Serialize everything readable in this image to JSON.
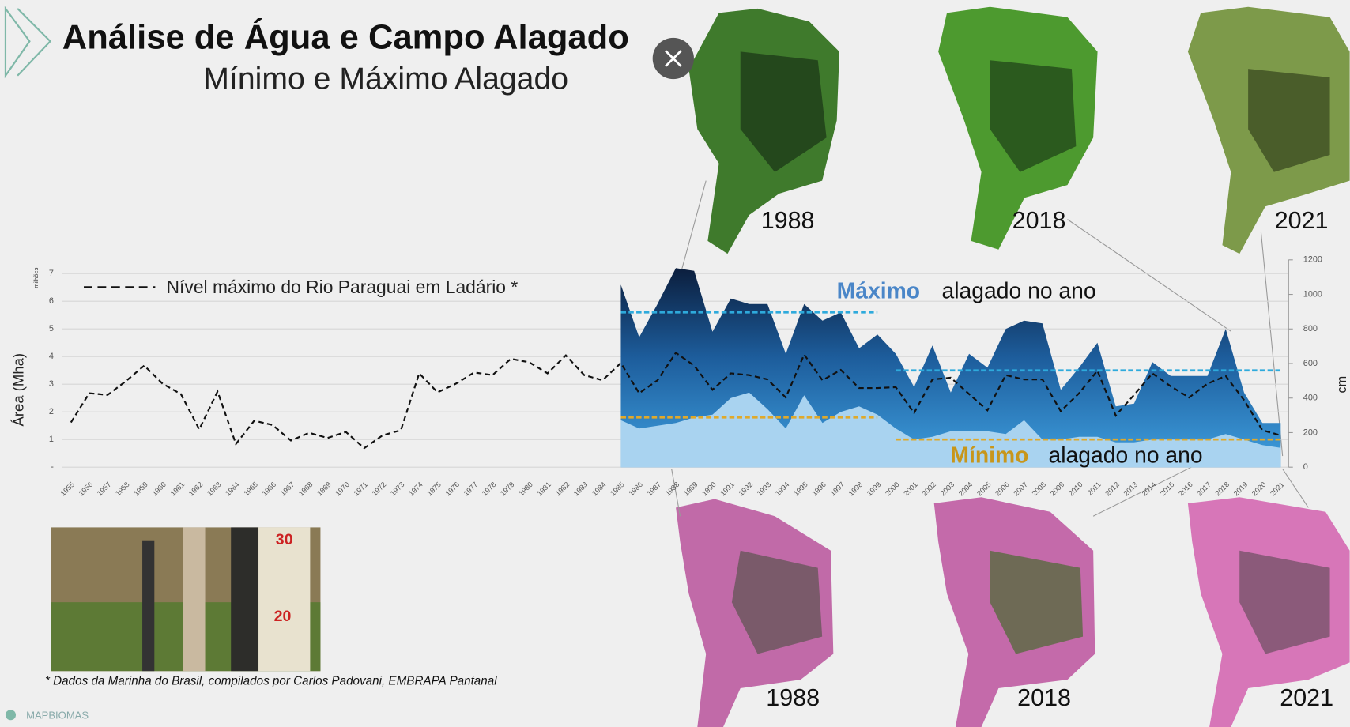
{
  "header": {
    "title": "Análise de Água e Campo Alagado",
    "subtitle": "Mínimo e Máximo Alagado"
  },
  "chart_data": {
    "type": "area-line",
    "categories": [
      "1955",
      "1956",
      "1957",
      "1958",
      "1959",
      "1960",
      "1961",
      "1962",
      "1963",
      "1964",
      "1965",
      "1966",
      "1967",
      "1968",
      "1969",
      "1970",
      "1971",
      "1972",
      "1973",
      "1974",
      "1975",
      "1976",
      "1977",
      "1978",
      "1979",
      "1980",
      "1981",
      "1982",
      "1983",
      "1984",
      "1985",
      "1986",
      "1987",
      "1988",
      "1989",
      "1990",
      "1991",
      "1992",
      "1993",
      "1994",
      "1995",
      "1996",
      "1997",
      "1998",
      "1999",
      "2000",
      "2001",
      "2002",
      "2003",
      "2004",
      "2005",
      "2006",
      "2007",
      "2008",
      "2009",
      "2010",
      "2011",
      "2012",
      "2013",
      "2014",
      "2015",
      "2016",
      "2017",
      "2018",
      "2019",
      "2020",
      "2021"
    ],
    "series": [
      {
        "name": "Máximo",
        "color": "#1f6fb5",
        "values": [
          null,
          null,
          null,
          null,
          null,
          null,
          null,
          null,
          null,
          null,
          null,
          null,
          null,
          null,
          null,
          null,
          null,
          null,
          null,
          null,
          null,
          null,
          null,
          null,
          null,
          null,
          null,
          null,
          null,
          null,
          6.6,
          4.7,
          5.9,
          7.2,
          7.1,
          4.9,
          6.1,
          5.9,
          5.9,
          4.1,
          5.9,
          5.3,
          5.6,
          4.3,
          4.8,
          4.1,
          2.9,
          4.4,
          2.7,
          4.1,
          3.6,
          5.0,
          5.3,
          5.2,
          2.8,
          3.6,
          4.5,
          2.2,
          2.3,
          3.8,
          3.3,
          3.3,
          3.3,
          5.0,
          2.7,
          1.6,
          1.6
        ]
      },
      {
        "name": "Mínimo",
        "color": "#a9d3f0",
        "values": [
          null,
          null,
          null,
          null,
          null,
          null,
          null,
          null,
          null,
          null,
          null,
          null,
          null,
          null,
          null,
          null,
          null,
          null,
          null,
          null,
          null,
          null,
          null,
          null,
          null,
          null,
          null,
          null,
          null,
          null,
          1.7,
          1.4,
          1.5,
          1.6,
          1.8,
          1.9,
          2.5,
          2.7,
          2.1,
          1.4,
          2.6,
          1.6,
          2.0,
          2.2,
          1.9,
          1.4,
          1.0,
          1.1,
          1.3,
          1.3,
          1.3,
          1.2,
          1.7,
          1.0,
          1.0,
          1.1,
          1.1,
          0.9,
          0.9,
          1.0,
          1.0,
          1.0,
          1.0,
          1.2,
          1.0,
          0.8,
          0.7
        ]
      },
      {
        "name": "Nível máximo do Rio Paraguai em Ladário *",
        "color": "#111111",
        "axis": "y2",
        "values": [
          259,
          428,
          418,
          498,
          588,
          483,
          423,
          219,
          438,
          134,
          269,
          244,
          154,
          199,
          169,
          204,
          110,
          184,
          214,
          543,
          433,
          483,
          548,
          533,
          627,
          607,
          543,
          647,
          533,
          503,
          603,
          428,
          503,
          662,
          588,
          448,
          543,
          533,
          508,
          403,
          652,
          503,
          563,
          458,
          458,
          463,
          314,
          508,
          518,
          423,
          329,
          533,
          508,
          508,
          324,
          428,
          558,
          299,
          418,
          543,
          468,
          403,
          483,
          528,
          388,
          214,
          184
        ]
      }
    ],
    "reference_lines": [
      {
        "value": 5.6,
        "from": "1985",
        "to": "1999",
        "color": "#2eaadc"
      },
      {
        "value": 3.5,
        "from": "2000",
        "to": "2021",
        "color": "#2eaadc"
      },
      {
        "value": 1.8,
        "from": "1985",
        "to": "1999",
        "color": "#e0a92a"
      },
      {
        "value": 1.0,
        "from": "2000",
        "to": "2021",
        "color": "#e0a92a"
      }
    ],
    "ylim": [
      0,
      7
    ],
    "yticks": [
      {
        "value": 0,
        "label": "-"
      },
      1,
      2,
      3,
      4,
      5,
      6,
      7
    ],
    "y2lim": [
      0,
      1200
    ],
    "y2ticks": [
      0,
      200,
      400,
      600,
      800,
      1000,
      1200
    ],
    "y_label": "Área (Mha)",
    "y_unit_note": "milhões",
    "y2_label": "cm",
    "grid": true,
    "annotations": {
      "max_word": "Máximo",
      "max_rest": "alagado no ano",
      "min_word": "Mínimo",
      "min_rest": "alagado no ano"
    }
  },
  "maps": {
    "top": [
      "1988",
      "2018",
      "2021"
    ],
    "bottom": [
      "1988",
      "2018",
      "2021"
    ]
  },
  "footnote": "* Dados da Marinha do Brasil, compilados por Carlos Padovani, EMBRAPA Pantanal",
  "logo": "MAPBIOMAS"
}
